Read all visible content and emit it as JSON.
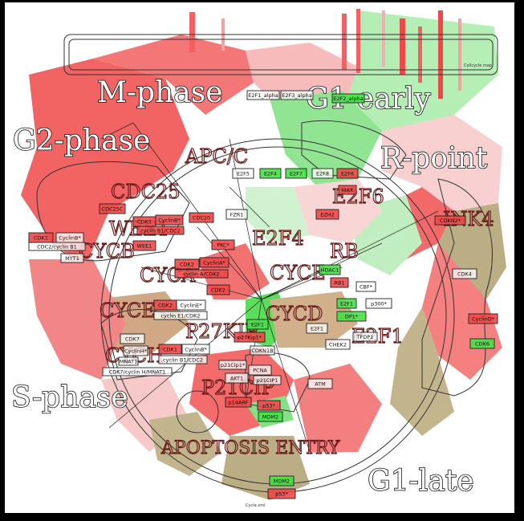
{
  "phases": {
    "m_phase": "M-phase",
    "g1_early": "G1-early",
    "g2_phase": "G2-phase",
    "r_point": "R-point",
    "s_phase": "S-phase",
    "g1_late": "G1-late"
  },
  "modules": {
    "apc_c": "APC/C",
    "cdc25": "CDC25",
    "e2f6": "E2F6",
    "e2f4": "E2F4",
    "ink4": "INK4",
    "wee1": "WEE1",
    "rb": "RB",
    "cycb": "CYCB",
    "cyca": "CYCA",
    "cyce": "CYCE",
    "cycd": "CYCD",
    "cych": "CYCH",
    "p27kip": "P27KIP",
    "e2f1": "E2F1",
    "p21cip": "P21CIP",
    "apoptosis": "APOPTOSIS ENTRY"
  },
  "header": {
    "legend_text": "Cellcycle map",
    "footer_text": "Cycle.xml"
  },
  "nodes": {
    "e2f1_e2f3_top": "E2F1_alpha",
    "e2f3_top": "E2F3_alpha",
    "e2f2_top": "E2F2_alpha",
    "e2f5": "E2F5",
    "e2f4": "E2F4",
    "e2f7": "E2F7",
    "e2f8": "E2F8",
    "e2f6": "E2F6",
    "max": "MAX",
    "ezh2": "EZH2",
    "cdc25c": "CDC25C",
    "cdc20": "CDC20",
    "fzr1": "FZR1",
    "cdk1_cyclinb1": "CDK1",
    "cyclinb": "CyclinB*",
    "cdc2_cyclinb1": "CDC2/cyclin B1",
    "myt1": "MYT1",
    "wee1": "WEE1",
    "cdk1_plk": "CDK1",
    "cyclinb_cdk1": "CyclinB*",
    "cyclinb_cdc2": "cyclin B1/CDC2",
    "plk1": "PKC*",
    "cdk2_a": "CDK2",
    "cyclina": "CyclinA*",
    "cyclina_cdk2": "cyclin A/CDK2",
    "cdk2_b": "CDK2",
    "cdk2_e": "CDK2",
    "cycline": "CyclinE*",
    "cycline_cdk2": "cyclin E1/CDK2",
    "cdk7": "CDK7",
    "cyclinh": "CyclinH*",
    "mnat1": "MNAT1",
    "cdk7_cyclinh": "CDK7/cyclin H/MNAT1",
    "cdk1_h": "CDK1",
    "cyclinb_h": "CyclinB*",
    "cyclinb1_cdc2_h": "cyclin B1/CDC2",
    "hdac1": "HDAC1",
    "rb1": "RB1",
    "cbf": "CBF*",
    "e2f1": "E2F1",
    "p300": "p300*",
    "dp1": "DP1*",
    "tfdp1": "TFDP1",
    "e2f1_b": "E2F1",
    "chek2": "CHEK2",
    "e2f1_c": "E2F1",
    "p27kip1": "p27Kip1*",
    "cdkn1b": "CDKN1B",
    "p21cip1": "p21Cip1*",
    "akt1": "AKT1",
    "pcna": "PCNA",
    "p21cip1_b": "p21CIP1",
    "p14arf": "p14ARF",
    "p53": "p53*",
    "mdm2": "MDM2",
    "atm": "ATM",
    "mdm2_b": "MDM2",
    "p53_b": "p53*",
    "cdk4": "CDK4",
    "cyclind": "CyclinD*",
    "cdk6": "CDK6",
    "cdkn2": "CDKN2*"
  },
  "colors": {
    "up": "#f04848",
    "down": "#46e046",
    "mixed": "#a89060",
    "neutral": "#ffffff"
  }
}
